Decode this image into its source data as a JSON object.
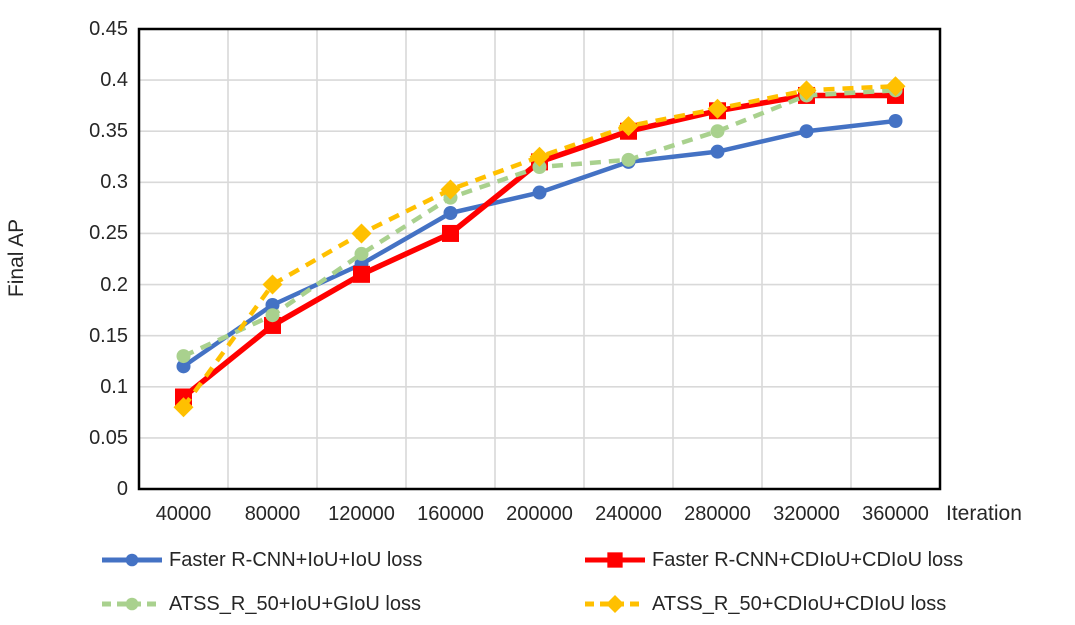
{
  "chart_data": {
    "type": "line",
    "title": "",
    "xlabel": "Iteration",
    "ylabel": "Final AP",
    "x": [
      40000,
      80000,
      120000,
      160000,
      200000,
      240000,
      280000,
      320000,
      360000
    ],
    "x_tick_labels": [
      "40000",
      "80000",
      "120000",
      "160000",
      "200000",
      "240000",
      "280000",
      "320000",
      "360000"
    ],
    "y_tick_labels": [
      "0",
      "0.05",
      "0.1",
      "0.15",
      "0.2",
      "0.25",
      "0.3",
      "0.35",
      "0.4",
      "0.45"
    ],
    "ylim": [
      0,
      0.45
    ],
    "ytick_step": 0.05,
    "grid": true,
    "legend_position": "bottom",
    "series": [
      {
        "name": "Faster R-CNN+IoU+IoU loss",
        "color": "#4472C4",
        "line_style": "solid",
        "marker": "circle",
        "values": [
          0.12,
          0.18,
          0.22,
          0.27,
          0.29,
          0.32,
          0.33,
          0.35,
          0.36
        ]
      },
      {
        "name": "Faster R-CNN+CDIoU+CDIoU loss",
        "color": "#FF0000",
        "line_style": "solid",
        "marker": "square",
        "values": [
          0.09,
          0.16,
          0.21,
          0.25,
          0.32,
          0.35,
          0.37,
          0.385,
          0.385
        ]
      },
      {
        "name": "ATSS_R_50+IoU+GIoU loss",
        "color": "#A9D18E",
        "line_style": "dashed",
        "marker": "circle",
        "values": [
          0.13,
          0.17,
          0.23,
          0.285,
          0.315,
          0.322,
          0.35,
          0.385,
          0.39
        ]
      },
      {
        "name": "ATSS_R_50+CDIoU+CDIoU loss",
        "color": "#FFC000",
        "line_style": "dashed",
        "marker": "diamond",
        "values": [
          0.08,
          0.2,
          0.25,
          0.293,
          0.325,
          0.355,
          0.372,
          0.39,
          0.394
        ]
      }
    ]
  },
  "colors": {
    "gridline": "#D9D9D9",
    "axis": "#000000",
    "text": "#262626",
    "background": "#FFFFFF"
  }
}
